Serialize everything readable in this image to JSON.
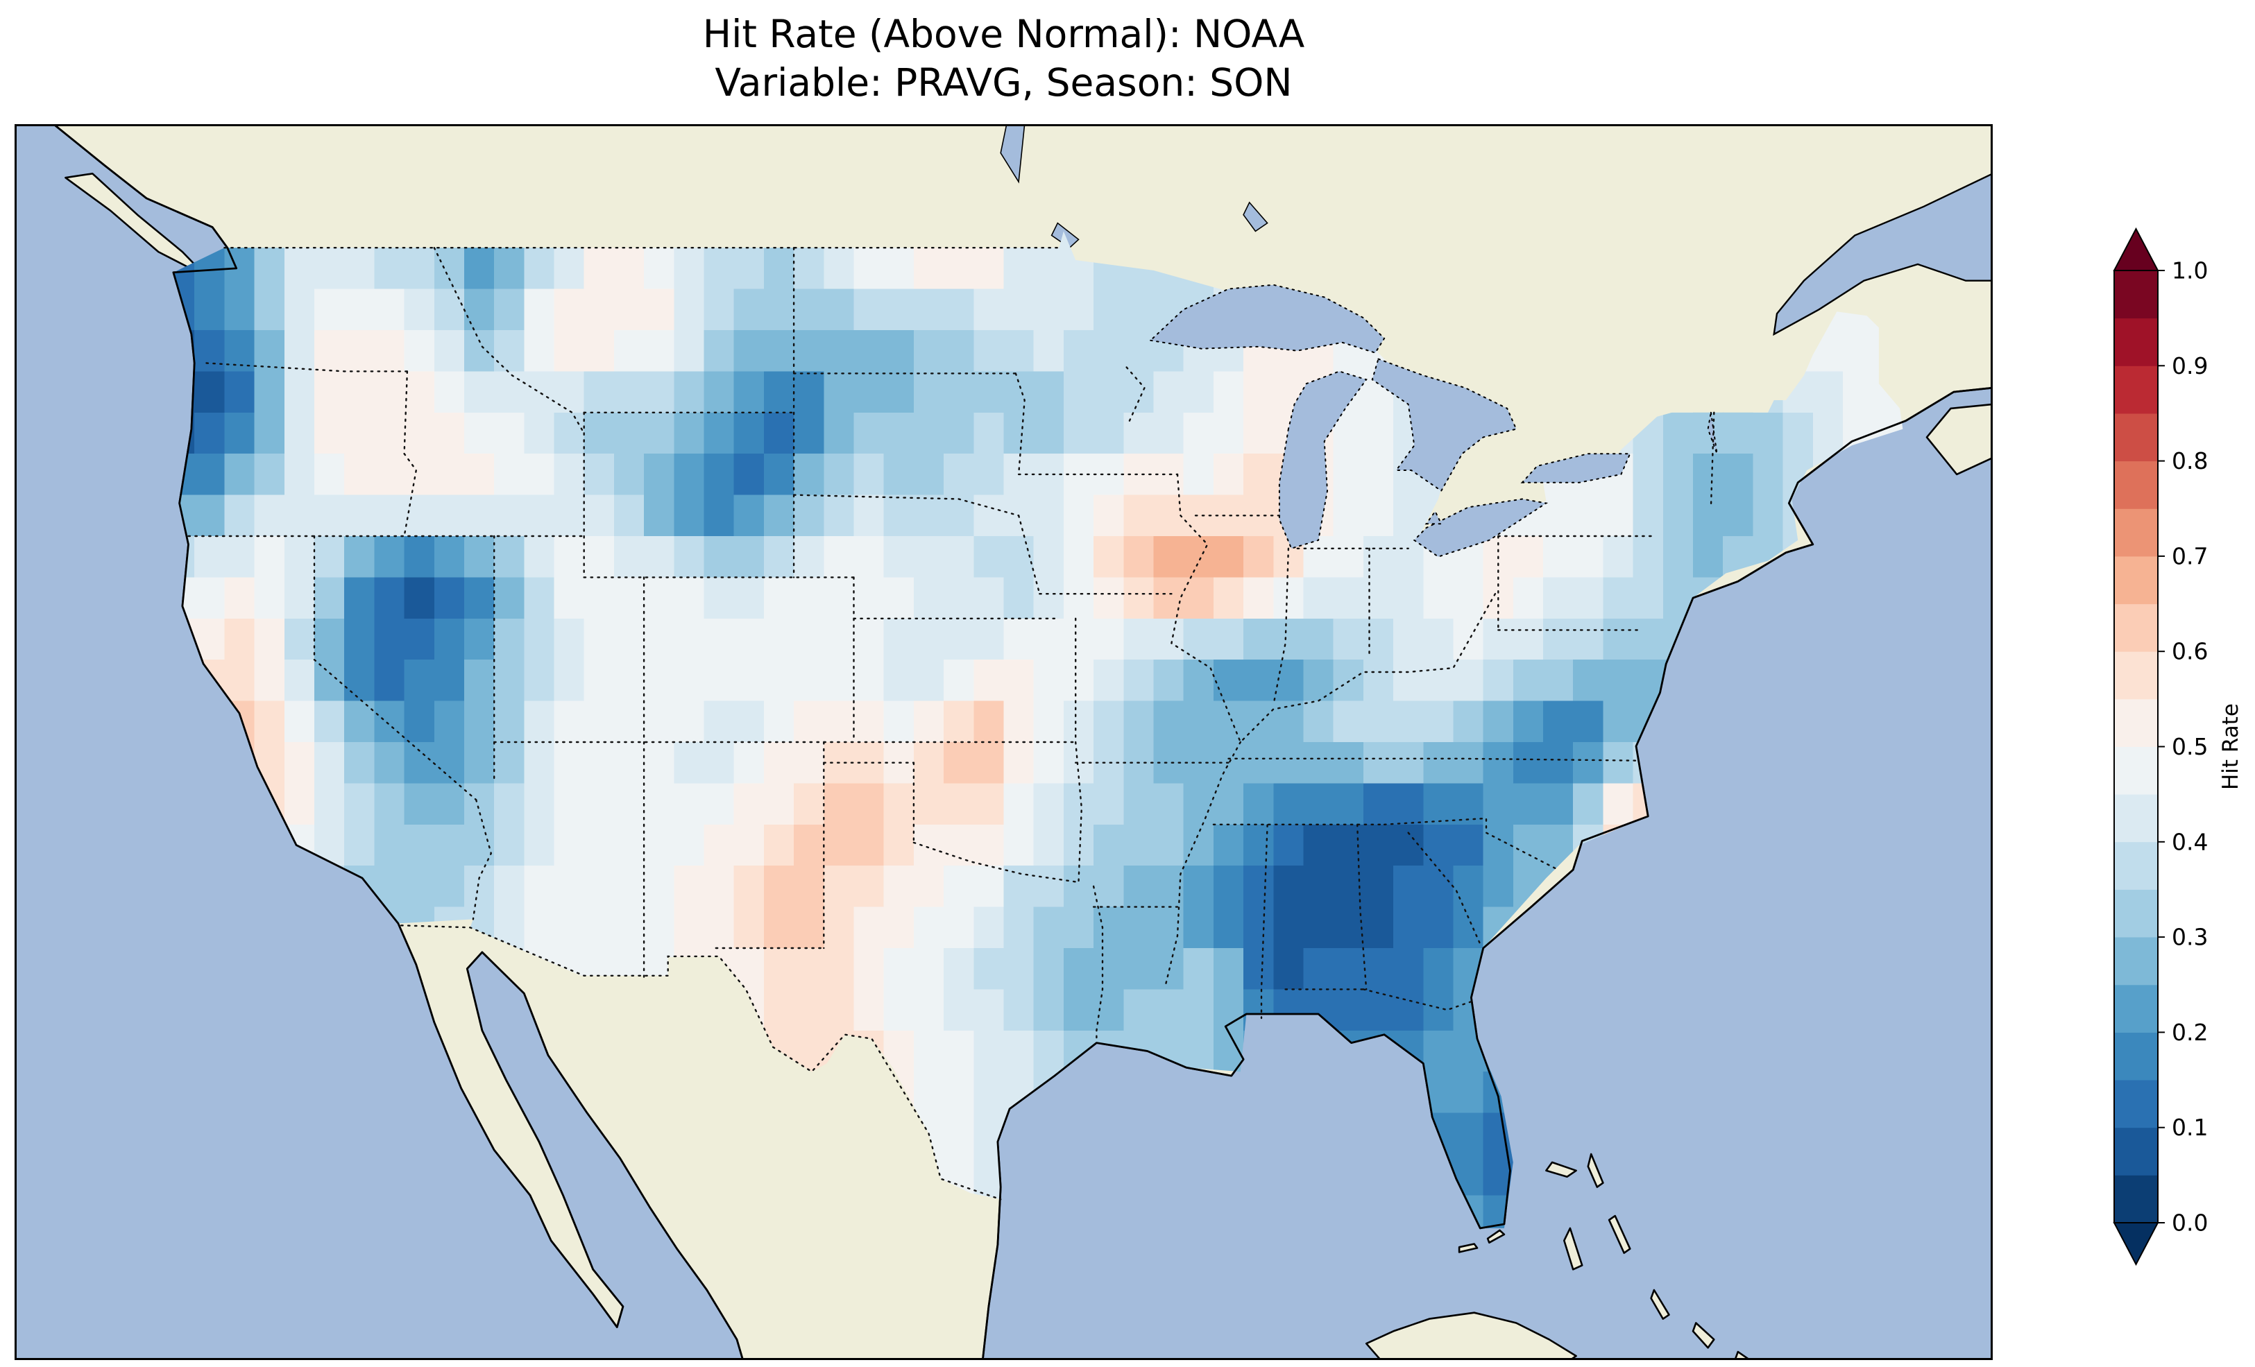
{
  "title": {
    "line1": "Hit Rate (Above Normal): NOAA",
    "line2": "Variable: PRAVG, Season: SON"
  },
  "colorbar": {
    "label": "Hit Rate",
    "ticks": [
      {
        "v": 1.0,
        "label": "1.0"
      },
      {
        "v": 0.9,
        "label": "0.9"
      },
      {
        "v": 0.8,
        "label": "0.8"
      },
      {
        "v": 0.7,
        "label": "0.7"
      },
      {
        "v": 0.6,
        "label": "0.6"
      },
      {
        "v": 0.5,
        "label": "0.5"
      },
      {
        "v": 0.4,
        "label": "0.4"
      },
      {
        "v": 0.3,
        "label": "0.3"
      },
      {
        "v": 0.2,
        "label": "0.2"
      },
      {
        "v": 0.1,
        "label": "0.1"
      },
      {
        "v": 0.0,
        "label": "0.0"
      }
    ]
  },
  "chart_data": {
    "type": "heatmap",
    "title": "Hit Rate (Above Normal): NOAA",
    "subtitle": "Variable: PRAVG, Season: SON",
    "source_label": "NOAA",
    "variable": "PRAVG",
    "season": "SON",
    "value_name": "Hit Rate",
    "value_range": [
      0.0,
      1.0
    ],
    "level_step": 0.05,
    "colorbar_ticks": [
      0.0,
      0.1,
      0.2,
      0.3,
      0.4,
      0.5,
      0.6,
      0.7,
      0.8,
      0.9,
      1.0
    ],
    "colormap": {
      "name": "RdBu_r",
      "anchors": [
        "#053061",
        "#2166ac",
        "#4393c3",
        "#92c5de",
        "#d1e5f0",
        "#f7f7f7",
        "#fddbc7",
        "#f4a582",
        "#d6604d",
        "#b2182b",
        "#67001f"
      ]
    },
    "map": {
      "projection": "PlateCarree",
      "ocean_color": "#a4bcdc",
      "land_color": "#efeeda",
      "coast_color": "#000000",
      "border_color": "#111111",
      "extent": {
        "lon": [
          -130,
          -64
        ],
        "lat": [
          22,
          52
        ]
      }
    },
    "grid": {
      "units": "hit rate (fraction)",
      "lon_centers": [
        -124,
        -122,
        -120,
        -118,
        -116,
        -114,
        -112,
        -110,
        -108,
        -106,
        -104,
        -102,
        -100,
        -98,
        -96,
        -94,
        -92,
        -90,
        -88,
        -86,
        -84,
        -82,
        -80,
        -78,
        -76,
        -74,
        -72,
        -70,
        -68
      ],
      "lat_centers": [
        49,
        47,
        45,
        43,
        41,
        39,
        37,
        35,
        33,
        31,
        29,
        27,
        25
      ],
      "values": [
        [
          0.15,
          0.3,
          0.45,
          0.35,
          0.3,
          0.2,
          0.35,
          0.55,
          0.45,
          0.4,
          0.35,
          0.5,
          0.55,
          0.6,
          0.4,
          null,
          null,
          null,
          null,
          null,
          null,
          null,
          null,
          null,
          null,
          null,
          null,
          null,
          null
        ],
        [
          0.1,
          0.25,
          0.5,
          0.55,
          0.45,
          0.25,
          0.6,
          0.55,
          0.5,
          0.3,
          0.3,
          0.3,
          0.3,
          0.35,
          0.45,
          0.4,
          0.35,
          null,
          null,
          null,
          null,
          null,
          null,
          null,
          null,
          null,
          null,
          0.5,
          0.45
        ],
        [
          0.05,
          0.15,
          0.5,
          0.55,
          0.5,
          0.45,
          0.4,
          0.3,
          0.35,
          0.2,
          0.1,
          0.3,
          0.3,
          0.35,
          0.3,
          0.35,
          0.4,
          0.45,
          0.55,
          0.5,
          0.45,
          null,
          null,
          null,
          null,
          0.35,
          0.3,
          0.4,
          0.5
        ],
        [
          0.2,
          0.35,
          0.45,
          0.5,
          0.55,
          0.5,
          0.45,
          0.35,
          0.2,
          0.1,
          0.25,
          0.4,
          0.35,
          0.4,
          0.45,
          0.5,
          0.55,
          0.5,
          0.6,
          null,
          0.45,
          0.4,
          0.45,
          0.5,
          0.45,
          0.25,
          0.3,
          0.4,
          null
        ],
        [
          0.45,
          0.5,
          0.4,
          0.15,
          0.05,
          0.2,
          0.45,
          0.5,
          0.45,
          0.4,
          0.45,
          0.5,
          0.45,
          0.4,
          0.35,
          0.55,
          0.7,
          0.75,
          0.6,
          0.45,
          0.4,
          0.5,
          0.55,
          0.45,
          0.4,
          0.3,
          0.35,
          null,
          null
        ],
        [
          0.55,
          0.6,
          0.3,
          0.1,
          0.15,
          0.3,
          0.4,
          0.45,
          0.5,
          0.45,
          0.5,
          0.45,
          0.4,
          0.45,
          0.5,
          0.45,
          0.35,
          0.25,
          0.2,
          0.3,
          0.4,
          0.45,
          0.4,
          0.35,
          0.3,
          null,
          null,
          null,
          null
        ],
        [
          0.6,
          0.65,
          0.45,
          0.25,
          0.2,
          0.3,
          0.45,
          0.5,
          0.45,
          0.4,
          0.5,
          0.55,
          0.5,
          0.7,
          0.5,
          0.4,
          0.3,
          0.25,
          0.3,
          0.35,
          0.4,
          0.35,
          0.2,
          0.1,
          0.3,
          null,
          null,
          null,
          null
        ],
        [
          null,
          null,
          0.5,
          0.35,
          0.3,
          0.35,
          0.45,
          0.5,
          0.45,
          0.5,
          0.6,
          0.65,
          0.55,
          0.55,
          0.45,
          0.35,
          0.35,
          0.3,
          0.15,
          0.1,
          0.05,
          0.1,
          0.25,
          0.3,
          0.7,
          null,
          null,
          null,
          null
        ],
        [
          null,
          null,
          null,
          0.3,
          0.35,
          0.4,
          0.5,
          0.45,
          0.5,
          0.55,
          0.65,
          0.55,
          0.5,
          0.45,
          0.35,
          0.3,
          0.25,
          0.2,
          0.05,
          0.05,
          0.1,
          0.15,
          0.3,
          null,
          null,
          null,
          null,
          null,
          null
        ],
        [
          null,
          null,
          null,
          null,
          null,
          null,
          null,
          0.5,
          0.5,
          0.5,
          0.6,
          0.55,
          0.45,
          0.4,
          0.35,
          0.25,
          0.3,
          0.35,
          0.1,
          0.15,
          0.1,
          0.2,
          null,
          null,
          null,
          null,
          null,
          null,
          null
        ],
        [
          null,
          null,
          null,
          null,
          null,
          null,
          null,
          null,
          null,
          null,
          null,
          0.6,
          0.5,
          0.45,
          0.4,
          0.35,
          0.35,
          0.3,
          null,
          null,
          null,
          0.25,
          0.2,
          null,
          null,
          null,
          null,
          null,
          null
        ],
        [
          null,
          null,
          null,
          null,
          null,
          null,
          null,
          null,
          null,
          null,
          null,
          null,
          null,
          0.45,
          null,
          null,
          null,
          null,
          null,
          null,
          null,
          0.15,
          0.1,
          null,
          null,
          null,
          null,
          null,
          null
        ],
        [
          null,
          null,
          null,
          null,
          null,
          null,
          null,
          null,
          null,
          null,
          null,
          null,
          null,
          null,
          null,
          null,
          null,
          null,
          null,
          null,
          null,
          0.25,
          0.2,
          null,
          null,
          null,
          null,
          null,
          null
        ]
      ]
    }
  }
}
